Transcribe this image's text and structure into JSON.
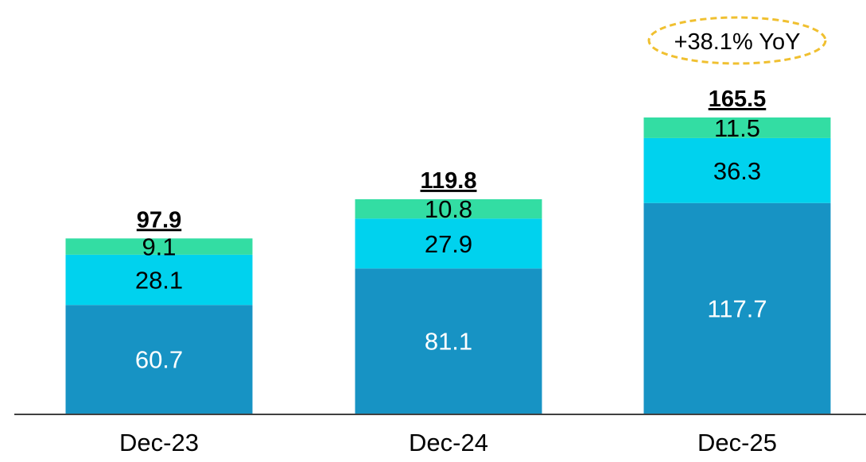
{
  "chart_data": {
    "type": "bar",
    "stacked": true,
    "categories": [
      "Dec-23",
      "Dec-24",
      "Dec-25"
    ],
    "series": [
      {
        "values": [
          60.7,
          81.1,
          117.7
        ],
        "color": "#1793C4",
        "label_color": "#ffffff"
      },
      {
        "values": [
          28.1,
          27.9,
          36.3
        ],
        "color": "#00D2EE",
        "label_color": "#000000"
      },
      {
        "values": [
          9.1,
          10.8,
          11.5
        ],
        "color": "#33DDA3",
        "label_color": "#000000"
      }
    ],
    "totals": [
      "97.9",
      "119.8",
      "165.5"
    ],
    "annotation": {
      "text": "+38.1% YoY",
      "category": "Dec-25",
      "border_color": "#F0C030"
    },
    "ylim": [
      0,
      165.5
    ],
    "grid": false,
    "legend": "none"
  }
}
